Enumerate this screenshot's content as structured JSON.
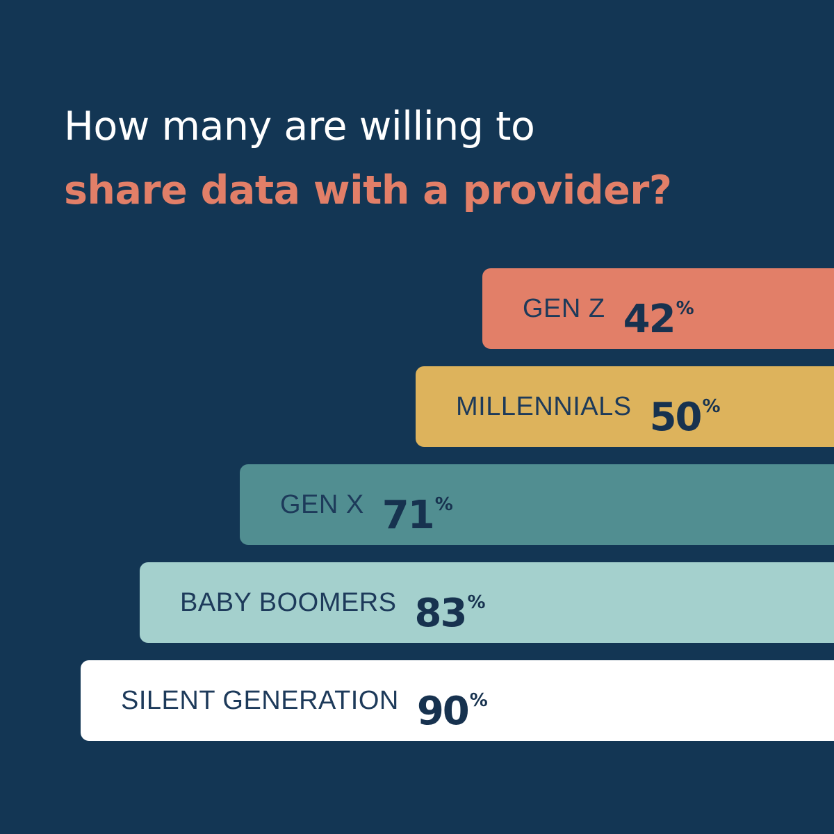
{
  "title": {
    "line1": "How many are willing to",
    "line2": "share data with a provider?"
  },
  "colors": {
    "background": "#133654",
    "text_dark": "#17324f",
    "accent": "#e27f68"
  },
  "chart_data": {
    "type": "bar",
    "orientation": "horizontal",
    "categories": [
      "GEN Z",
      "MILLENNIALS",
      "GEN X",
      "BABY BOOMERS",
      "SILENT GENERATION"
    ],
    "values": [
      42,
      50,
      71,
      83,
      90
    ],
    "value_labels": [
      "42",
      "50",
      "71",
      "83",
      "90"
    ],
    "unit": "%",
    "colors": [
      "#e27f68",
      "#ddb35c",
      "#518e91",
      "#a4d0cd",
      "#ffffff"
    ],
    "title": "How many are willing to share data with a provider?",
    "xlabel": "",
    "ylabel": "",
    "grid": false,
    "legend": "none"
  }
}
